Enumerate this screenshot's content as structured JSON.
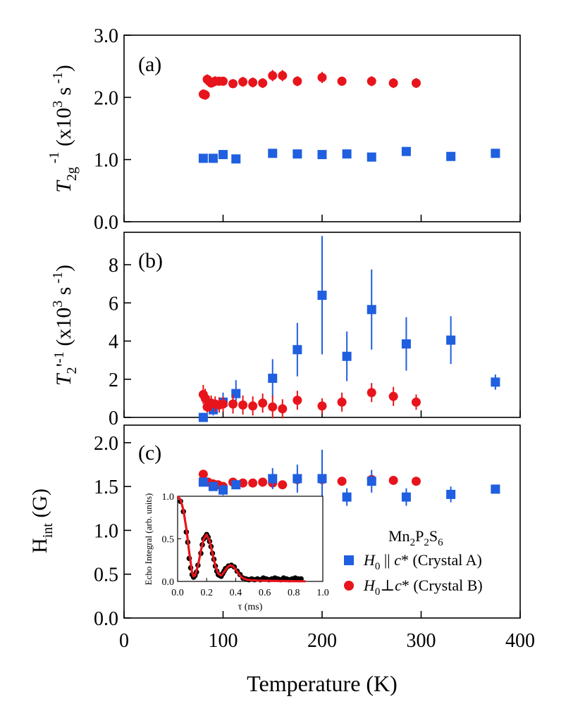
{
  "figure": {
    "x_axis_label": "Temperature (K)",
    "legend_title": "Mn2P2S6",
    "series_styles": {
      "A": {
        "label": "H0 || c* (Crystal A)",
        "color": "#1f5fe0",
        "marker": "square"
      },
      "B": {
        "label": "H0 ⊥ c* (Crystal B)",
        "color": "#e8141c",
        "marker": "circle"
      }
    }
  },
  "chart_data": [
    {
      "type": "scatter",
      "panel": "(a)",
      "ylabel": "T2g^-1 (x10^3 s^-1)",
      "xlim": [
        0,
        400
      ],
      "ylim": [
        0,
        3.0
      ],
      "x_ticks": [
        0,
        100,
        200,
        300,
        400
      ],
      "y_ticks": [
        "0.0",
        "1.0",
        "2.0",
        "3.0"
      ],
      "series": [
        {
          "key": "B",
          "points": [
            [
              80,
              2.05,
              0.08
            ],
            [
              82,
              2.04,
              0.08
            ],
            [
              84,
              2.29,
              0.08
            ],
            [
              86,
              2.26,
              0.08
            ],
            [
              88,
              2.23,
              0.07
            ],
            [
              92,
              2.26,
              0.08
            ],
            [
              96,
              2.26,
              0.07
            ],
            [
              100,
              2.26,
              0.07
            ],
            [
              110,
              2.22,
              0.07
            ],
            [
              120,
              2.25,
              0.08
            ],
            [
              130,
              2.24,
              0.08
            ],
            [
              140,
              2.23,
              0.08
            ],
            [
              150,
              2.35,
              0.09
            ],
            [
              160,
              2.35,
              0.09
            ],
            [
              175,
              2.26,
              0.08
            ],
            [
              200,
              2.32,
              0.09
            ],
            [
              220,
              2.26,
              0.07
            ],
            [
              250,
              2.26,
              0.08
            ],
            [
              272,
              2.23,
              0.08
            ],
            [
              295,
              2.23,
              0.08
            ]
          ]
        },
        {
          "key": "A",
          "points": [
            [
              80,
              1.02,
              0
            ],
            [
              90,
              1.02,
              0
            ],
            [
              100,
              1.08,
              0
            ],
            [
              113,
              1.01,
              0
            ],
            [
              150,
              1.1,
              0
            ],
            [
              175,
              1.09,
              0
            ],
            [
              200,
              1.08,
              0
            ],
            [
              225,
              1.09,
              0
            ],
            [
              250,
              1.04,
              0
            ],
            [
              285,
              1.13,
              0
            ],
            [
              330,
              1.05,
              0
            ],
            [
              375,
              1.1,
              0
            ]
          ]
        }
      ]
    },
    {
      "type": "scatter",
      "panel": "(b)",
      "ylabel": "T2'^-1 (x10^3 s^-1)",
      "xlim": [
        0,
        400
      ],
      "ylim": [
        0,
        9.7
      ],
      "x_ticks": [
        0,
        100,
        200,
        300,
        400
      ],
      "y_ticks": [
        "0",
        "2",
        "4",
        "6",
        "8"
      ],
      "series": [
        {
          "key": "A",
          "points": [
            [
              80,
              0.0,
              0.1
            ],
            [
              90,
              0.4,
              0.3
            ],
            [
              100,
              0.8,
              0.5
            ],
            [
              113,
              1.25,
              0.7
            ],
            [
              150,
              2.05,
              1.0
            ],
            [
              175,
              3.55,
              1.4
            ],
            [
              200,
              6.4,
              3.1
            ],
            [
              225,
              3.2,
              1.3
            ],
            [
              250,
              5.65,
              2.1
            ],
            [
              285,
              3.85,
              1.4
            ],
            [
              330,
              4.05,
              1.25
            ],
            [
              375,
              1.85,
              0.4
            ]
          ]
        },
        {
          "key": "B",
          "points": [
            [
              80,
              1.2,
              0.5
            ],
            [
              82,
              1.0,
              0.5
            ],
            [
              84,
              0.55,
              0.3
            ],
            [
              86,
              0.7,
              0.4
            ],
            [
              88,
              0.75,
              0.4
            ],
            [
              92,
              0.7,
              0.4
            ],
            [
              96,
              0.65,
              0.4
            ],
            [
              100,
              0.7,
              0.4
            ],
            [
              110,
              0.7,
              0.5
            ],
            [
              120,
              0.65,
              0.5
            ],
            [
              130,
              0.6,
              0.5
            ],
            [
              140,
              0.75,
              0.5
            ],
            [
              150,
              0.55,
              0.6
            ],
            [
              160,
              0.45,
              0.5
            ],
            [
              175,
              0.9,
              0.5
            ],
            [
              200,
              0.6,
              0.4
            ],
            [
              220,
              0.8,
              0.5
            ],
            [
              250,
              1.3,
              0.5
            ],
            [
              272,
              1.1,
              0.5
            ],
            [
              295,
              0.8,
              0.4
            ]
          ]
        }
      ]
    },
    {
      "type": "scatter",
      "panel": "(c)",
      "ylabel": "Hint (G)",
      "xlim": [
        0,
        400
      ],
      "ylim": [
        0,
        2.2
      ],
      "x_ticks": [
        0,
        100,
        200,
        300,
        400
      ],
      "y_ticks": [
        "0.0",
        "0.5",
        "1.0",
        "1.5",
        "2.0"
      ],
      "series": [
        {
          "key": "B",
          "points": [
            [
              80,
              1.64,
              0
            ],
            [
              85,
              1.55,
              0
            ],
            [
              90,
              1.53,
              0
            ],
            [
              95,
              1.52,
              0
            ],
            [
              100,
              1.5,
              0
            ],
            [
              110,
              1.55,
              0
            ],
            [
              120,
              1.54,
              0
            ],
            [
              130,
              1.54,
              0
            ],
            [
              140,
              1.55,
              0
            ],
            [
              150,
              1.54,
              0
            ],
            [
              160,
              1.52,
              0
            ],
            [
              175,
              1.58,
              0
            ],
            [
              200,
              1.58,
              0
            ],
            [
              220,
              1.56,
              0
            ],
            [
              250,
              1.58,
              0
            ],
            [
              272,
              1.57,
              0
            ],
            [
              295,
              1.56,
              0
            ]
          ]
        },
        {
          "key": "A",
          "points": [
            [
              80,
              1.55,
              0.02
            ],
            [
              90,
              1.5,
              0.05
            ],
            [
              100,
              1.46,
              0.06
            ],
            [
              113,
              1.52,
              0.04
            ],
            [
              150,
              1.59,
              0.12
            ],
            [
              175,
              1.59,
              0.16
            ],
            [
              200,
              1.59,
              0.33
            ],
            [
              225,
              1.38,
              0.1
            ],
            [
              250,
              1.56,
              0.13
            ],
            [
              285,
              1.38,
              0.1
            ],
            [
              330,
              1.41,
              0.09
            ],
            [
              375,
              1.47,
              0.02
            ]
          ]
        }
      ]
    },
    {
      "type": "line",
      "panel": "inset",
      "xlabel": "τ (ms)",
      "ylabel": "Echo Integral (arb. units)",
      "xlim": [
        0,
        1.0
      ],
      "ylim": [
        0,
        1.0
      ],
      "x_ticks": [
        "0.0",
        "0.2",
        "0.4",
        "0.6",
        "0.8",
        "1.0"
      ],
      "y_ticks": [
        "0.0",
        "0.5",
        "1.0"
      ],
      "data_points": [
        [
          0.02,
          0.94
        ],
        [
          0.04,
          0.82
        ],
        [
          0.06,
          0.58
        ],
        [
          0.07,
          0.46
        ],
        [
          0.08,
          0.27
        ],
        [
          0.09,
          0.16
        ],
        [
          0.1,
          0.08
        ],
        [
          0.11,
          0.05
        ],
        [
          0.12,
          0.07
        ],
        [
          0.13,
          0.11
        ],
        [
          0.14,
          0.19
        ],
        [
          0.16,
          0.33
        ],
        [
          0.17,
          0.43
        ],
        [
          0.18,
          0.5
        ],
        [
          0.19,
          0.52
        ],
        [
          0.2,
          0.55
        ],
        [
          0.21,
          0.52
        ],
        [
          0.22,
          0.47
        ],
        [
          0.23,
          0.41
        ],
        [
          0.24,
          0.33
        ],
        [
          0.25,
          0.26
        ],
        [
          0.26,
          0.18
        ],
        [
          0.27,
          0.12
        ],
        [
          0.28,
          0.08
        ],
        [
          0.29,
          0.07
        ],
        [
          0.3,
          0.06
        ],
        [
          0.31,
          0.09
        ],
        [
          0.32,
          0.12
        ],
        [
          0.33,
          0.15
        ],
        [
          0.35,
          0.18
        ],
        [
          0.37,
          0.19
        ],
        [
          0.39,
          0.17
        ],
        [
          0.41,
          0.12
        ],
        [
          0.43,
          0.08
        ],
        [
          0.45,
          0.04
        ],
        [
          0.47,
          0.03
        ],
        [
          0.49,
          0.02
        ],
        [
          0.51,
          0.03
        ],
        [
          0.53,
          0.02
        ],
        [
          0.55,
          0.03
        ],
        [
          0.57,
          0.02
        ],
        [
          0.59,
          0.04
        ],
        [
          0.61,
          0.03
        ],
        [
          0.63,
          0.02
        ],
        [
          0.65,
          0.03
        ],
        [
          0.67,
          0.04
        ],
        [
          0.69,
          0.03
        ],
        [
          0.71,
          0.02
        ],
        [
          0.73,
          0.04
        ],
        [
          0.75,
          0.03
        ],
        [
          0.77,
          0.02
        ],
        [
          0.79,
          0.03
        ],
        [
          0.81,
          0.04
        ],
        [
          0.83,
          0.03
        ],
        [
          0.85,
          0.03
        ]
      ],
      "fit_curve": [
        [
          0.0,
          1.0
        ],
        [
          0.02,
          0.96
        ],
        [
          0.04,
          0.84
        ],
        [
          0.06,
          0.62
        ],
        [
          0.08,
          0.34
        ],
        [
          0.1,
          0.1
        ],
        [
          0.11,
          0.06
        ],
        [
          0.12,
          0.07
        ],
        [
          0.14,
          0.18
        ],
        [
          0.16,
          0.36
        ],
        [
          0.18,
          0.5
        ],
        [
          0.2,
          0.55
        ],
        [
          0.22,
          0.48
        ],
        [
          0.24,
          0.33
        ],
        [
          0.26,
          0.18
        ],
        [
          0.28,
          0.09
        ],
        [
          0.3,
          0.07
        ],
        [
          0.32,
          0.11
        ],
        [
          0.34,
          0.16
        ],
        [
          0.36,
          0.19
        ],
        [
          0.38,
          0.18
        ],
        [
          0.4,
          0.14
        ],
        [
          0.42,
          0.09
        ],
        [
          0.44,
          0.05
        ],
        [
          0.46,
          0.03
        ],
        [
          0.48,
          0.02
        ],
        [
          0.5,
          0.015
        ],
        [
          0.55,
          0.01
        ],
        [
          0.6,
          0.008
        ],
        [
          0.7,
          0.005
        ],
        [
          0.8,
          0.003
        ],
        [
          0.88,
          0.002
        ]
      ],
      "data_color": "#000000",
      "fit_color": "#e8141c"
    }
  ]
}
